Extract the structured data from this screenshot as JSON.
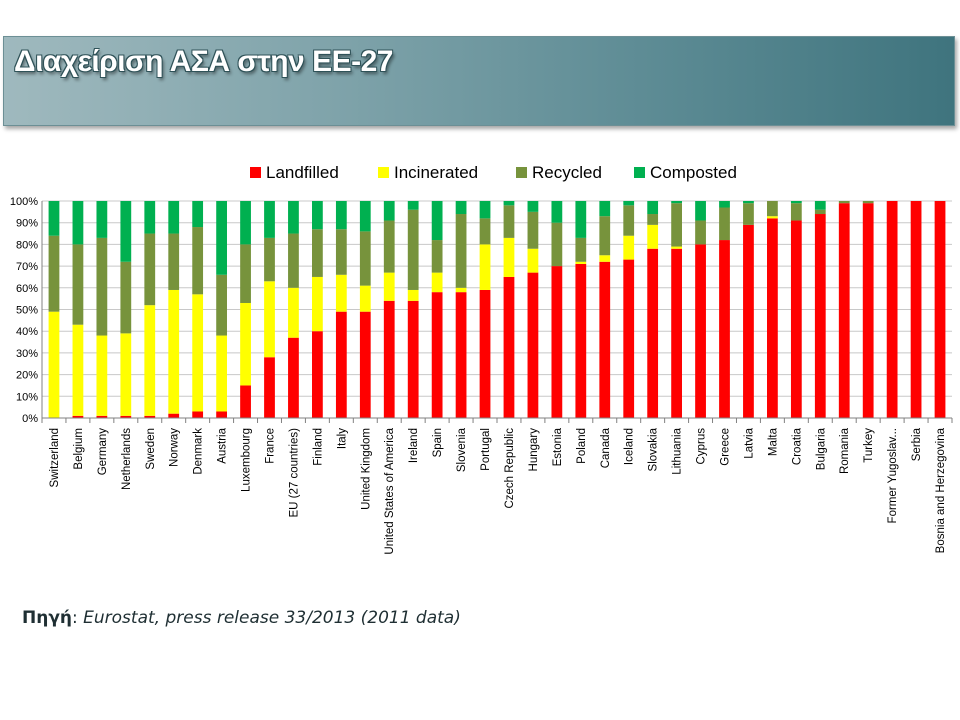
{
  "title": "Διαχείριση ΑΣΑ στην ΕΕ-27",
  "source": {
    "label": "Πηγή",
    "text": "Eurostat, press release 33/2013 (2011 data)"
  },
  "colors": {
    "Landfilled": "#ff0000",
    "Incinerated": "#ffff00",
    "Recycled": "#77933c",
    "Composted": "#00b050"
  },
  "chart_data": {
    "type": "bar",
    "stacked": true,
    "title": "",
    "xlabel": "",
    "ylabel": "",
    "ylim": [
      0,
      100
    ],
    "yticks": [
      "0%",
      "10%",
      "20%",
      "30%",
      "40%",
      "50%",
      "60%",
      "70%",
      "80%",
      "90%",
      "100%"
    ],
    "legend_position": "top",
    "grid": "horizontal",
    "categories": [
      "Switzerland",
      "Belgium",
      "Germany",
      "Netherlands",
      "Sweden",
      "Norway",
      "Denmark",
      "Austria",
      "Luxembourg",
      "France",
      "EU (27 countries)",
      "Finland",
      "Italy",
      "United Kingdom",
      "United States of America",
      "Ireland",
      "Spain",
      "Slovenia",
      "Portugal",
      "Czech Republic",
      "Hungary",
      "Estonia",
      "Poland",
      "Canada",
      "Iceland",
      "Slovakia",
      "Lithuania",
      "Cyprus",
      "Greece",
      "Latvia",
      "Malta",
      "Croatia",
      "Bulgaria",
      "Romania",
      "Turkey",
      "Former Yugoslav...",
      "Serbia",
      "Bosnia and Herzegovina"
    ],
    "series": [
      {
        "name": "Landfilled",
        "values": [
          0,
          1,
          1,
          1,
          1,
          2,
          3,
          3,
          15,
          28,
          37,
          40,
          49,
          49,
          54,
          54,
          58,
          58,
          59,
          65,
          67,
          70,
          71,
          72,
          73,
          78,
          78,
          80,
          82,
          89,
          92,
          91,
          94,
          99,
          99,
          100,
          100,
          100
        ]
      },
      {
        "name": "Incinerated",
        "values": [
          49,
          42,
          37,
          38,
          51,
          57,
          54,
          35,
          38,
          35,
          23,
          25,
          17,
          12,
          13,
          5,
          9,
          2,
          21,
          18,
          11,
          0,
          1,
          3,
          11,
          11,
          1,
          0,
          0,
          0,
          1,
          0,
          0,
          0,
          0,
          0,
          0,
          0
        ]
      },
      {
        "name": "Recycled",
        "values": [
          35,
          37,
          45,
          33,
          33,
          26,
          31,
          28,
          27,
          20,
          25,
          22,
          21,
          25,
          24,
          37,
          15,
          34,
          12,
          15,
          17,
          20,
          11,
          18,
          14,
          5,
          20,
          11,
          15,
          10,
          7,
          8,
          2,
          1,
          1,
          0,
          0,
          0
        ]
      },
      {
        "name": "Composted",
        "values": [
          16,
          20,
          17,
          28,
          15,
          15,
          12,
          34,
          20,
          17,
          15,
          13,
          13,
          14,
          9,
          4,
          18,
          6,
          8,
          2,
          5,
          10,
          17,
          7,
          2,
          6,
          1,
          9,
          3,
          1,
          0,
          1,
          4,
          0,
          0,
          0,
          0,
          0
        ]
      }
    ]
  }
}
